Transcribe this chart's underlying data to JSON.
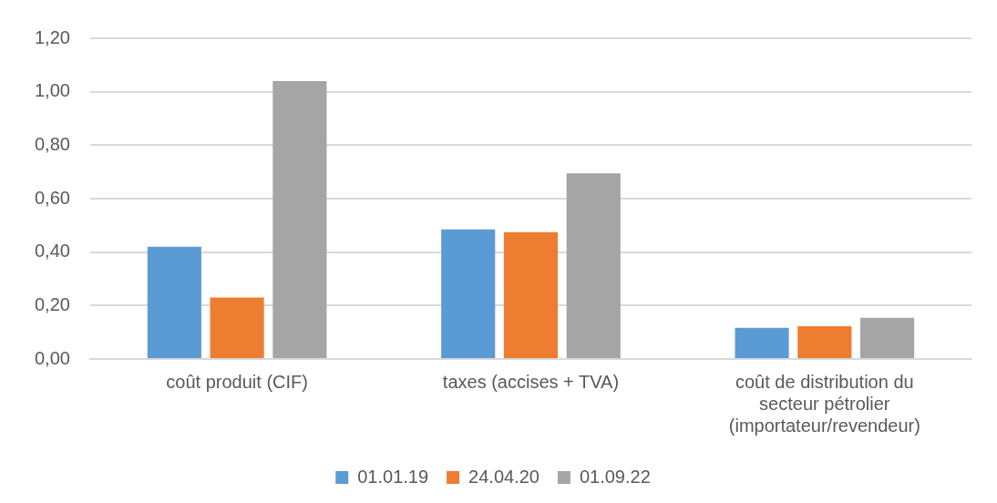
{
  "chart_data": {
    "type": "bar",
    "categories": [
      "coût produit (CIF)",
      "taxes (accises + TVA)",
      "coût de distribution du secteur pétrolier (importateur/revendeur)"
    ],
    "series": [
      {
        "name": "01.01.19",
        "color": "#5b9bd5",
        "values": [
          0.42,
          0.485,
          0.117
        ]
      },
      {
        "name": "24.04.20",
        "color": "#ed7d31",
        "values": [
          0.23,
          0.475,
          0.123
        ]
      },
      {
        "name": "01.09.22",
        "color": "#a5a5a5",
        "values": [
          1.04,
          0.695,
          0.154
        ]
      }
    ],
    "ylim": [
      0,
      1.2
    ],
    "yticks": [
      {
        "value": 0,
        "label": "0,00"
      },
      {
        "value": 0.2,
        "label": "0,20"
      },
      {
        "value": 0.4,
        "label": "0,40"
      },
      {
        "value": 0.6,
        "label": "0,60"
      },
      {
        "value": 0.8,
        "label": "0,80"
      },
      {
        "value": 1,
        "label": "1,00"
      },
      {
        "value": 1.2,
        "label": "1,20"
      }
    ],
    "grid": "y",
    "legend": "bottom"
  }
}
